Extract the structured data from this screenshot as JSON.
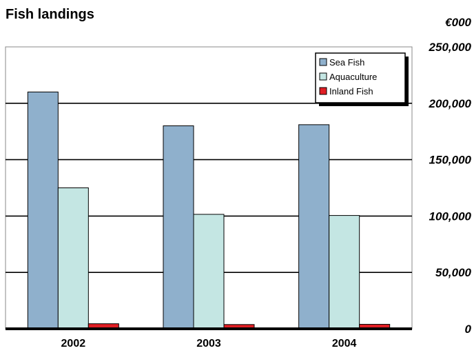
{
  "chart_data": {
    "type": "bar",
    "title": "Fish landings",
    "unit_label": "€000",
    "categories": [
      "2002",
      "2003",
      "2004"
    ],
    "series": [
      {
        "name": "Sea Fish",
        "color": "#8fb0cc",
        "values": [
          210000,
          180000,
          181000
        ]
      },
      {
        "name": "Aquaculture",
        "color": "#c4e6e3",
        "values": [
          125000,
          101500,
          100500
        ]
      },
      {
        "name": "Inland Fish",
        "color": "#e01e24",
        "values": [
          4500,
          3800,
          4000
        ]
      }
    ],
    "ylim": [
      0,
      250000
    ],
    "yticks": [
      "0",
      "50,000",
      "100,000",
      "150,000",
      "200,000",
      "250,000"
    ],
    "ytick_values": [
      0,
      50000,
      100000,
      150000,
      200000,
      250000
    ],
    "grid": true,
    "legend_position": "top-right"
  }
}
